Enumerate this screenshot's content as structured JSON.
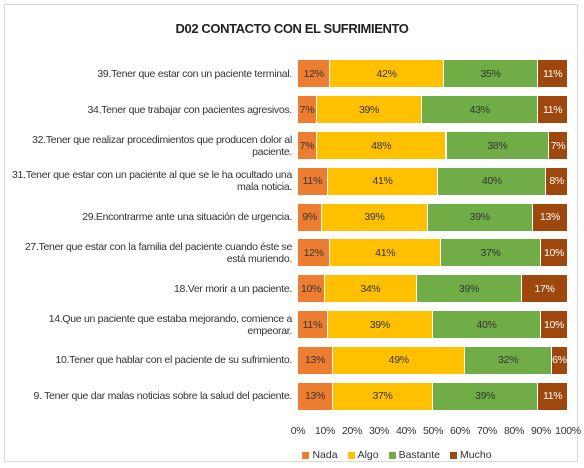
{
  "chart_data": {
    "type": "stacked_bar_horizontal",
    "title": "D02 CONTACTO CON EL SUFRIMIENTO",
    "categories": [
      "39.Tener que estar con un paciente terminal.",
      "34.Tener que trabajar con pacientes agresivos.",
      "32.Tener que realizar procedimientos que producen dolor al paciente.",
      "31.Tener que estar con un paciente al que se le ha ocultado una mala noticia.",
      "29.Encontrarme ante una situación de urgencia.",
      "27.Tener que estar con la familia del paciente cuando éste se está muriendo.",
      "18.Ver morir a un paciente.",
      "14.Que un paciente que estaba mejorando, comience a empeorar.",
      "10.Tener que hablar con el paciente de su sufrimiento.",
      "9. Tener que dar malas noticias sobre la salud del paciente."
    ],
    "series": [
      {
        "name": "Nada",
        "color": "#ed7d31",
        "values": [
          12,
          7,
          7,
          11,
          9,
          12,
          10,
          11,
          13,
          13
        ],
        "value_labels": [
          "12%",
          "7%",
          "7%",
          "11%",
          "9%",
          "12%",
          "10%",
          "11%",
          "13%",
          "13%"
        ]
      },
      {
        "name": "Algo",
        "color": "#ffc000",
        "values": [
          42,
          39,
          48,
          41,
          39,
          41,
          34,
          39,
          49,
          37
        ],
        "value_labels": [
          "42%",
          "39%",
          "48%",
          "41%",
          "39%",
          "41%",
          "34%",
          "39%",
          "49%",
          "37%"
        ]
      },
      {
        "name": "Bastante",
        "color": "#70ad47",
        "values": [
          35,
          43,
          38,
          40,
          39,
          37,
          39,
          40,
          32,
          39
        ],
        "value_labels": [
          "35%",
          "43%",
          "38%",
          "40%",
          "39%",
          "37%",
          "39%",
          "40%",
          "32%",
          "39%"
        ]
      },
      {
        "name": "Mucho",
        "color": "#9e480e",
        "values": [
          11,
          11,
          7,
          8,
          13,
          10,
          17,
          10,
          6,
          11
        ],
        "value_labels": [
          "11%",
          "11%",
          "7%",
          "8%",
          "13%",
          "10%",
          "17%",
          "10%",
          "6%",
          "11%"
        ]
      }
    ],
    "xlim": [
      0,
      100
    ],
    "xticks": [
      {
        "value": 0,
        "label": "0%"
      },
      {
        "value": 10,
        "label": "10%"
      },
      {
        "value": 20,
        "label": "20%"
      },
      {
        "value": 30,
        "label": "30%"
      },
      {
        "value": 40,
        "label": "40%"
      },
      {
        "value": 50,
        "label": "50%"
      },
      {
        "value": 60,
        "label": "60%"
      },
      {
        "value": 70,
        "label": "70%"
      },
      {
        "value": 80,
        "label": "80%"
      },
      {
        "value": 90,
        "label": "90%"
      },
      {
        "value": 100,
        "label": "100%"
      }
    ],
    "legend": "bottom"
  }
}
